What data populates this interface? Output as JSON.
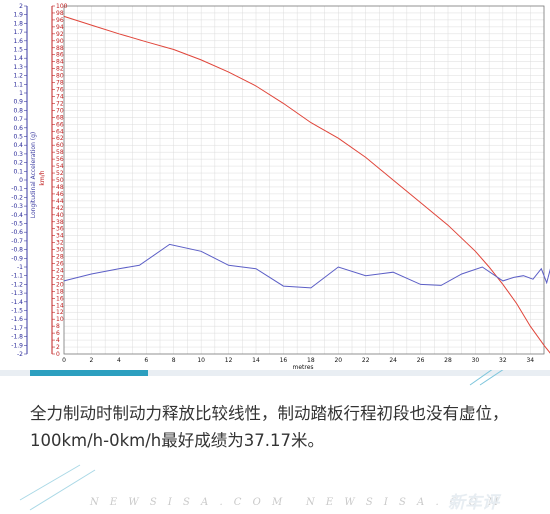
{
  "chart_data": {
    "type": "line",
    "ylabel_left": "Longitudinal Acceleration (g)",
    "ylabel_right": "km/h",
    "xlabel": "metres",
    "xlim": [
      0,
      35
    ],
    "xticks": [
      "0",
      "2",
      "4",
      "6",
      "8",
      "10",
      "12",
      "14",
      "16",
      "18",
      "20",
      "22",
      "24",
      "26",
      "28",
      "30",
      "32",
      "34"
    ],
    "ylim_left": [
      -2,
      2
    ],
    "yticks_left": [
      "2",
      "1.9",
      "1.8",
      "1.7",
      "1.6",
      "1.5",
      "1.4",
      "1.3",
      "1.2",
      "1.1",
      "1",
      "0.9",
      "0.8",
      "0.7",
      "0.6",
      "0.5",
      "0.4",
      "0.3",
      "0.2",
      "0.1",
      "0",
      "-0.1",
      "-0.2",
      "-0.3",
      "-0.4",
      "-0.5",
      "-0.6",
      "-0.7",
      "-0.8",
      "-0.9",
      "-1",
      "-1.1",
      "-1.2",
      "-1.3",
      "-1.4",
      "-1.5",
      "-1.6",
      "-1.7",
      "-1.8",
      "-1.9",
      "-2"
    ],
    "ylim_right": [
      0,
      100
    ],
    "yticks_right": [
      "100",
      "98",
      "96",
      "94",
      "92",
      "90",
      "88",
      "86",
      "84",
      "82",
      "80",
      "78",
      "76",
      "74",
      "72",
      "70",
      "68",
      "66",
      "64",
      "62",
      "60",
      "58",
      "56",
      "54",
      "52",
      "50",
      "48",
      "46",
      "44",
      "42",
      "40",
      "38",
      "36",
      "34",
      "32",
      "30",
      "28",
      "26",
      "24",
      "22",
      "20",
      "18",
      "16",
      "14",
      "12",
      "10",
      "8",
      "6",
      "4",
      "2",
      "0"
    ],
    "series": [
      {
        "axis": "right",
        "color": "#e0453a",
        "x": [
          0,
          2,
          4,
          6,
          8,
          10,
          12,
          14,
          16,
          18,
          20,
          22,
          24,
          26,
          28,
          30,
          31,
          32,
          33,
          34,
          35,
          35.5
        ],
        "y": [
          97,
          94.5,
          92,
          89.7,
          87.5,
          84.5,
          81,
          77,
          72,
          66.5,
          62,
          56.5,
          50,
          43.5,
          37,
          29.5,
          25,
          20,
          14.5,
          8,
          2.5,
          0
        ]
      },
      {
        "axis": "right",
        "color": "#5b5ec6",
        "x": [
          0,
          2,
          4,
          5.5,
          7.7,
          10,
          12,
          14,
          16,
          18,
          20,
          22,
          24,
          26,
          27.5,
          29,
          30.5,
          32,
          32.8,
          33.5,
          34.2,
          34.8,
          35.2,
          35.5,
          35.6
        ],
        "y": [
          21,
          23,
          24.5,
          25.5,
          31.5,
          29.5,
          25.5,
          24.5,
          19.5,
          19,
          25,
          22.5,
          23.5,
          20,
          19.7,
          23,
          25,
          21,
          22,
          22.5,
          21.5,
          24.5,
          20.5,
          25,
          32
        ]
      }
    ],
    "grid": true
  },
  "caption": {
    "text": "全力制动时制动力释放比较线性，制动踏板行程初段也没有虚位，100km/h-0km/h最好成绩为37.17米。"
  },
  "watermark": {
    "text1": "N E W S I S A . C O M",
    "text2": "N E W S I S A . C O M",
    "logo": "新车评"
  }
}
